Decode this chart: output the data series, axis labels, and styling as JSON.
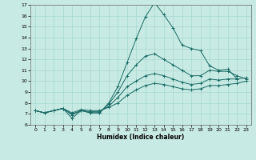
{
  "title": "",
  "xlabel": "Humidex (Indice chaleur)",
  "xlim": [
    -0.5,
    23.5
  ],
  "ylim": [
    6,
    17
  ],
  "xticks": [
    0,
    1,
    2,
    3,
    4,
    5,
    6,
    7,
    8,
    9,
    10,
    11,
    12,
    13,
    14,
    15,
    16,
    17,
    18,
    19,
    20,
    21,
    22,
    23
  ],
  "yticks": [
    6,
    7,
    8,
    9,
    10,
    11,
    12,
    13,
    14,
    15,
    16,
    17
  ],
  "bg_color": "#c8eae4",
  "line_color": "#1a6b65",
  "grid_color": "#a8d8d0",
  "lines": [
    {
      "x": [
        0,
        1,
        2,
        3,
        4,
        5,
        6,
        7,
        8,
        9,
        10,
        11,
        12,
        13,
        14,
        15,
        16,
        17,
        18,
        19,
        20,
        21,
        22
      ],
      "y": [
        7.3,
        7.1,
        7.3,
        7.5,
        6.6,
        7.3,
        7.1,
        7.1,
        8.0,
        9.5,
        11.7,
        13.9,
        15.9,
        17.2,
        16.1,
        14.9,
        13.3,
        13.0,
        12.8,
        11.4,
        11.0,
        11.1,
        10.2
      ]
    },
    {
      "x": [
        0,
        1,
        2,
        3,
        4,
        5,
        6,
        7,
        8,
        9,
        10,
        11,
        12,
        13,
        14,
        15,
        16,
        17,
        18,
        19,
        20,
        21,
        22,
        23
      ],
      "y": [
        7.3,
        7.1,
        7.3,
        7.5,
        6.9,
        7.3,
        7.1,
        7.1,
        7.9,
        9.0,
        10.5,
        11.5,
        12.3,
        12.5,
        12.0,
        11.5,
        11.0,
        10.5,
        10.5,
        11.0,
        10.9,
        10.9,
        10.5,
        10.2
      ]
    },
    {
      "x": [
        0,
        1,
        2,
        3,
        4,
        5,
        6,
        7,
        8,
        9,
        10,
        11,
        12,
        13,
        14,
        15,
        16,
        17,
        18,
        19,
        20,
        21,
        22,
        23
      ],
      "y": [
        7.3,
        7.1,
        7.3,
        7.5,
        7.0,
        7.3,
        7.2,
        7.2,
        7.7,
        8.5,
        9.5,
        10.0,
        10.5,
        10.7,
        10.5,
        10.2,
        9.9,
        9.7,
        9.8,
        10.2,
        10.1,
        10.2,
        10.2,
        10.3
      ]
    },
    {
      "x": [
        0,
        1,
        2,
        3,
        4,
        5,
        6,
        7,
        8,
        9,
        10,
        11,
        12,
        13,
        14,
        15,
        16,
        17,
        18,
        19,
        20,
        21,
        22,
        23
      ],
      "y": [
        7.3,
        7.1,
        7.3,
        7.5,
        7.1,
        7.4,
        7.3,
        7.3,
        7.6,
        8.0,
        8.7,
        9.2,
        9.6,
        9.8,
        9.7,
        9.5,
        9.3,
        9.2,
        9.3,
        9.6,
        9.6,
        9.7,
        9.8,
        10.0
      ]
    }
  ]
}
